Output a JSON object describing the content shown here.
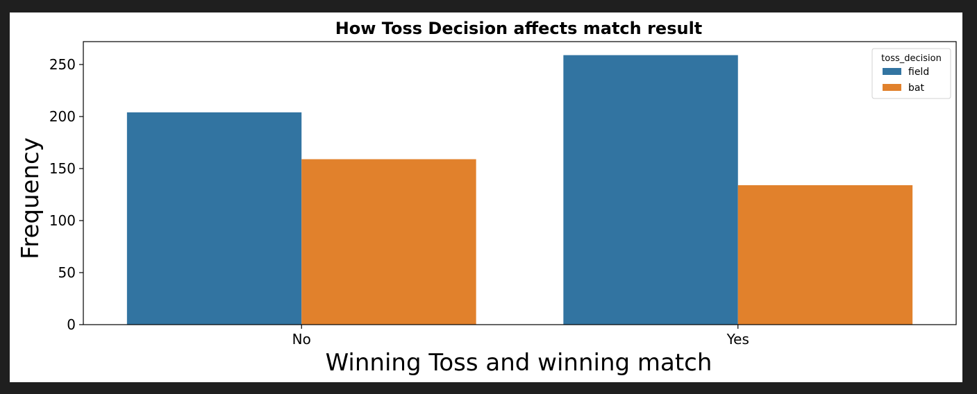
{
  "chart_data": {
    "type": "bar",
    "title": "How Toss Decision affects match result",
    "xlabel": "Winning Toss and winning match",
    "ylabel": "Frequency",
    "categories": [
      "No",
      "Yes"
    ],
    "series": [
      {
        "name": "field",
        "values": [
          204,
          259
        ],
        "color": "#3274a1"
      },
      {
        "name": "bat",
        "values": [
          159,
          134
        ],
        "color": "#e1812c"
      }
    ],
    "ylim": [
      0,
      272
    ],
    "yticks": [
      0,
      50,
      100,
      150,
      200,
      250
    ],
    "legend": {
      "title": "toss_decision",
      "position": "top-right"
    },
    "grid": false
  }
}
